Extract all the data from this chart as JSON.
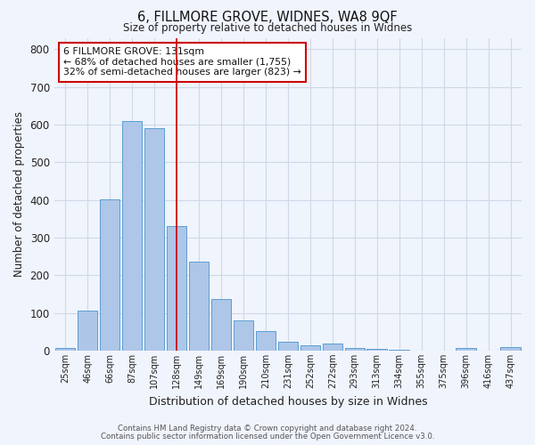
{
  "title": "6, FILLMORE GROVE, WIDNES, WA8 9QF",
  "subtitle": "Size of property relative to detached houses in Widnes",
  "xlabel": "Distribution of detached houses by size in Widnes",
  "ylabel": "Number of detached properties",
  "footnote1": "Contains HM Land Registry data © Crown copyright and database right 2024.",
  "footnote2": "Contains public sector information licensed under the Open Government Licence v3.0.",
  "bin_labels": [
    "25sqm",
    "46sqm",
    "66sqm",
    "87sqm",
    "107sqm",
    "128sqm",
    "149sqm",
    "169sqm",
    "190sqm",
    "210sqm",
    "231sqm",
    "252sqm",
    "272sqm",
    "293sqm",
    "313sqm",
    "334sqm",
    "355sqm",
    "375sqm",
    "396sqm",
    "416sqm",
    "437sqm"
  ],
  "bar_heights": [
    7,
    107,
    402,
    608,
    591,
    330,
    237,
    136,
    79,
    52,
    24,
    15,
    18,
    8,
    5,
    1,
    0,
    0,
    8,
    0,
    9
  ],
  "bar_color": "#aec6e8",
  "bar_edge_color": "#5a9fd4",
  "vline_x": 5,
  "vline_color": "#cc0000",
  "annotation_text": "6 FILLMORE GROVE: 131sqm\n← 68% of detached houses are smaller (1,755)\n32% of semi-detached houses are larger (823) →",
  "annotation_box_color": "#ffffff",
  "annotation_box_edge": "#cc0000",
  "ylim": [
    0,
    830
  ],
  "yticks": [
    0,
    100,
    200,
    300,
    400,
    500,
    600,
    700,
    800
  ],
  "grid_color": "#d0d8e8",
  "background_color": "#f0f4fc"
}
